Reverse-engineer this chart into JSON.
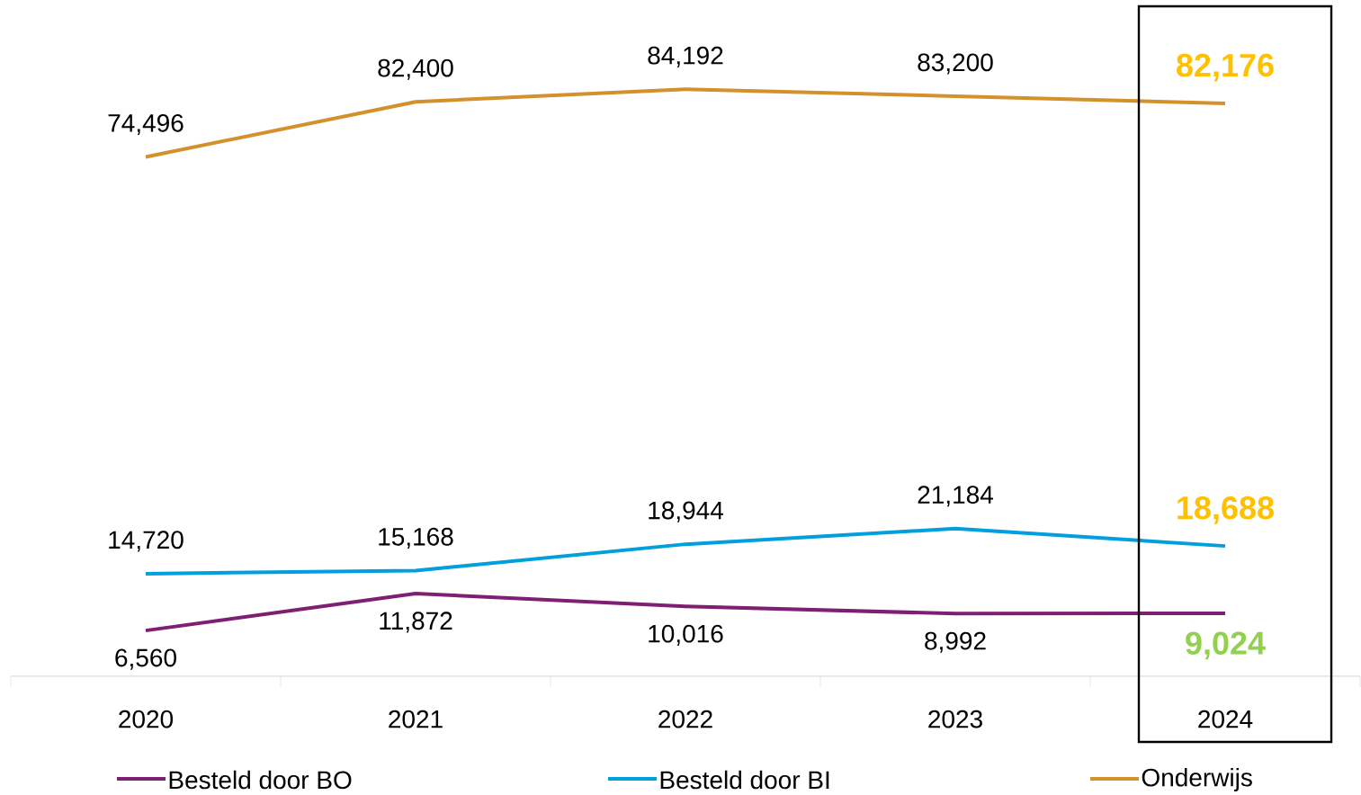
{
  "chart_data": {
    "type": "line",
    "categories": [
      "2020",
      "2021",
      "2022",
      "2023",
      "2024"
    ],
    "legend": "bottom",
    "marker": "none",
    "line_style": "solid",
    "series": [
      {
        "name": "Besteld door BO",
        "color": "#7F1F73",
        "values": [
          6560,
          11872,
          10016,
          8992,
          9024
        ],
        "value_labels": [
          "6,560",
          "11,872",
          "10,016",
          "8,992",
          "**9,024**"
        ]
      },
      {
        "name": "Besteld door BI",
        "color": "#00A0DC",
        "values": [
          14720,
          15168,
          18944,
          21184,
          18688
        ],
        "value_labels": [
          "14,720",
          "15,168",
          "18,944",
          "21,184",
          "**18,688**"
        ]
      },
      {
        "name": "Onderwijs",
        "color": "#D4902A",
        "values": [
          74496,
          82400,
          84192,
          83200,
          82176
        ],
        "value_labels": [
          "74,496",
          "82,400",
          "84,192",
          "83,200",
          "**82,176**"
        ]
      }
    ]
  }
}
